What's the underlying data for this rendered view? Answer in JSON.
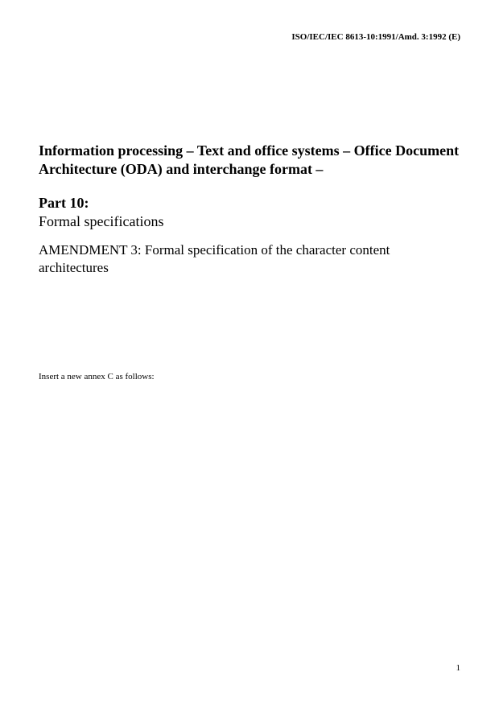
{
  "header": {
    "reference": "ISO/IEC/IEC 8613-10:1991/Amd. 3:1992 (E)"
  },
  "title": {
    "main": "Information processing – Text and office systems – Office Document Architecture (ODA) and interchange format –",
    "part_label": "Part 10:",
    "part_sub": "Formal specifications",
    "amendment": "AMENDMENT 3: Formal specification of the character content architectures"
  },
  "body": {
    "instruction": "Insert a new annex C as follows:"
  },
  "footer": {
    "page_number": "1"
  },
  "style": {
    "background_color": "#ffffff",
    "text_color": "#000000",
    "header_fontsize": 11,
    "title_fontsize": 18,
    "amendment_fontsize": 17,
    "instruction_fontsize": 11,
    "page_number_fontsize": 11
  }
}
